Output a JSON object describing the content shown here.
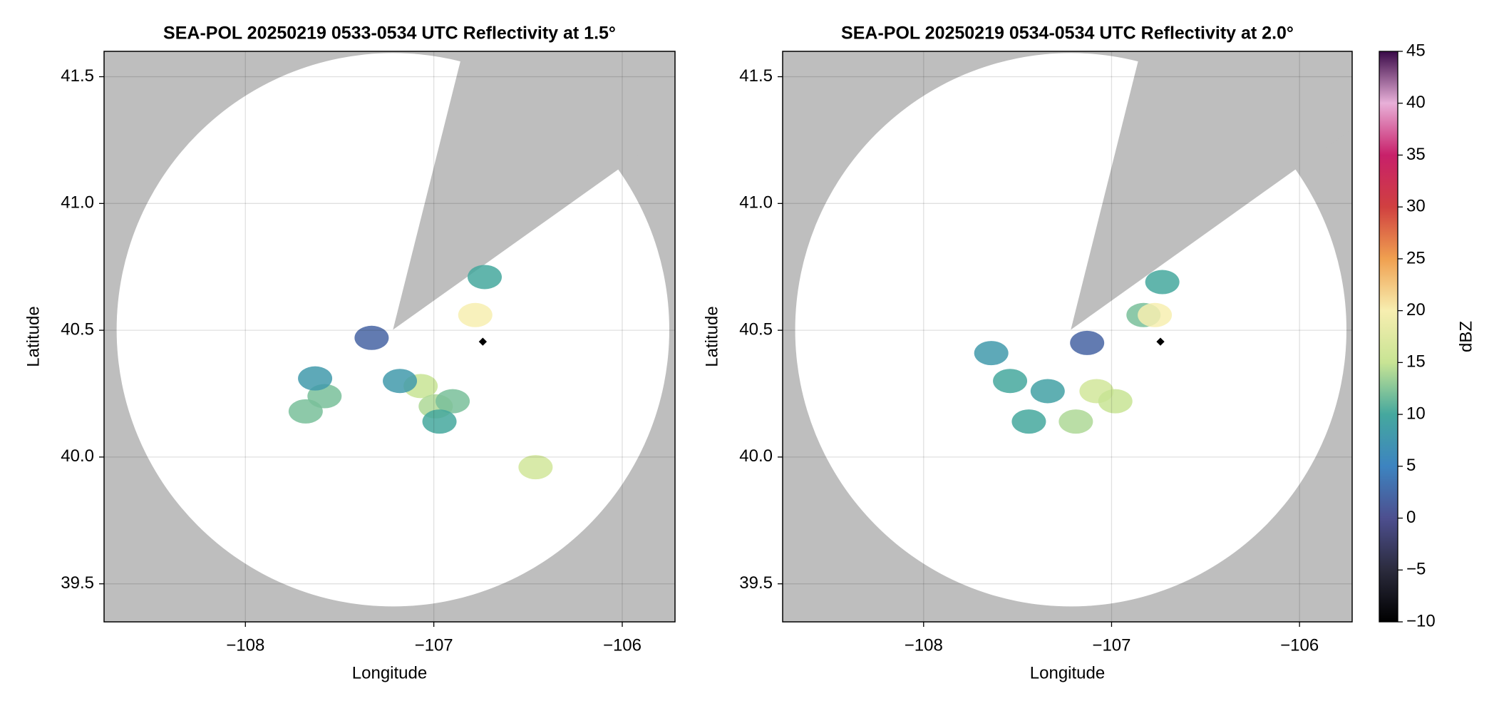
{
  "chart_data": [
    {
      "type": "scatter",
      "title": "SEA-POL 20250219 0533-0534 UTC Reflectivity at 1.5°",
      "x_label": "Longitude",
      "y_label": "Latitude",
      "xlim": [
        -108.75,
        -105.72
      ],
      "ylim": [
        39.35,
        41.6
      ],
      "xticks": [
        {
          "value": -108,
          "label": "−108"
        },
        {
          "value": -107,
          "label": "−107"
        },
        {
          "value": -106,
          "label": "−106"
        }
      ],
      "yticks": [
        39.5,
        {
          "value": 40,
          "label": "40.0"
        },
        40.5,
        {
          "value": 41,
          "label": "41.0"
        },
        41.5
      ],
      "grid": true,
      "x": [
        -107.58,
        -107.07,
        -106.99,
        -106.9,
        -107.18,
        -106.78,
        -106.73,
        -107.33,
        -107.63,
        -107.68,
        -106.46,
        -106.97
      ],
      "y": [
        40.24,
        40.28,
        40.2,
        40.22,
        40.3,
        40.56,
        40.71,
        40.47,
        40.31,
        40.18,
        39.96,
        40.14
      ],
      "values": [
        12,
        15,
        14,
        12,
        8,
        20,
        10,
        2,
        8,
        12,
        16,
        10
      ],
      "marker": {
        "x": -106.74,
        "y": 40.455
      }
    },
    {
      "type": "scatter",
      "title": "SEA-POL 20250219 0534-0534 UTC Reflectivity at 2.0°",
      "x_label": "Longitude",
      "y_label": "Latitude",
      "xlim": [
        -108.75,
        -105.72
      ],
      "ylim": [
        39.35,
        41.6
      ],
      "xticks": [
        {
          "value": -108,
          "label": "−108"
        },
        {
          "value": -107,
          "label": "−107"
        },
        {
          "value": -106,
          "label": "−106"
        }
      ],
      "yticks": [
        39.5,
        {
          "value": 40,
          "label": "40.0"
        },
        40.5,
        {
          "value": 41,
          "label": "41.0"
        },
        41.5
      ],
      "grid": true,
      "x": [
        -107.54,
        -107.34,
        -107.08,
        -106.98,
        -107.19,
        -107.64,
        -106.83,
        -106.77,
        -106.73,
        -107.13,
        -107.44
      ],
      "y": [
        40.3,
        40.26,
        40.26,
        40.22,
        40.14,
        40.41,
        40.56,
        40.56,
        40.69,
        40.45,
        40.14
      ],
      "values": [
        10,
        9,
        16,
        15,
        14,
        8,
        12,
        20,
        10,
        2,
        10
      ],
      "marker": {
        "x": -106.74,
        "y": 40.455
      }
    },
    {
      "type": "colorbar",
      "label": "dBZ",
      "clim": [
        -10,
        45
      ],
      "cticks": [
        {
          "value": -10,
          "label": "−10"
        },
        {
          "value": -5,
          "label": "−5"
        },
        0,
        5,
        10,
        15,
        20,
        25,
        30,
        35,
        40,
        45
      ],
      "colormap": [
        "#000000",
        "#2b2b3d",
        "#4d4f8f",
        "#3d84c0",
        "#45a89e",
        "#c8e494",
        "#f7eeb0",
        "#f0a050",
        "#d04040",
        "#c8206a",
        "#e8b0d8",
        "#3a0a48"
      ]
    }
  ]
}
